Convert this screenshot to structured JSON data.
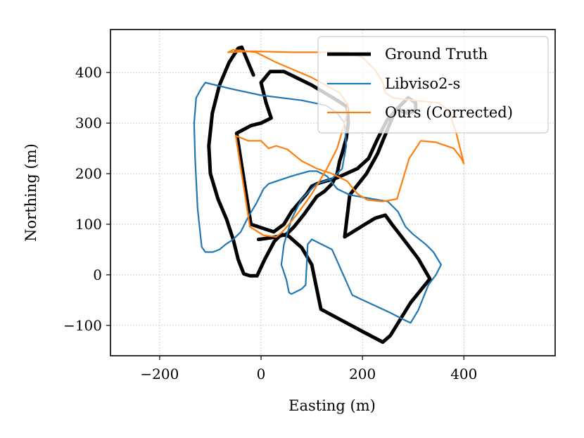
{
  "chart_data": {
    "type": "line",
    "xlabel": "Easting (m)",
    "ylabel": "Northing (m)",
    "xlim": [
      -297,
      580
    ],
    "ylim": [
      -160,
      485
    ],
    "xticks": [
      -200,
      0,
      200,
      400
    ],
    "xtick_labels": [
      "−200",
      "0",
      "200",
      "400"
    ],
    "yticks": [
      -100,
      0,
      100,
      200,
      300,
      400
    ],
    "ytick_labels": [
      "−100",
      "0",
      "100",
      "200",
      "300",
      "400"
    ],
    "grid": true,
    "legend_position": "top-right",
    "series": [
      {
        "name": "Ground Truth",
        "color": "#000000",
        "points": [
          [
            -15,
            395
          ],
          [
            -38,
            450
          ],
          [
            -45,
            448
          ],
          [
            -63,
            420
          ],
          [
            -82,
            375
          ],
          [
            -96,
            320
          ],
          [
            -103,
            255
          ],
          [
            -100,
            200
          ],
          [
            -85,
            150
          ],
          [
            -68,
            110
          ],
          [
            -55,
            70
          ],
          [
            -45,
            30
          ],
          [
            -34,
            2
          ],
          [
            -22,
            -2
          ],
          [
            -8,
            -2
          ],
          [
            7,
            30
          ],
          [
            26,
            66
          ],
          [
            40,
            80
          ],
          [
            55,
            76
          ],
          [
            80,
            54
          ],
          [
            100,
            20
          ],
          [
            118,
            -68
          ],
          [
            200,
            -112
          ],
          [
            240,
            -133
          ],
          [
            255,
            -120
          ],
          [
            295,
            -55
          ],
          [
            325,
            -18
          ],
          [
            333,
            -8
          ],
          [
            310,
            32
          ],
          [
            285,
            65
          ],
          [
            258,
            100
          ],
          [
            245,
            118
          ],
          [
            225,
            112
          ],
          [
            205,
            100
          ],
          [
            165,
            75
          ],
          [
            175,
            158
          ],
          [
            208,
            200
          ],
          [
            230,
            240
          ],
          [
            240,
            265
          ],
          [
            262,
            318
          ],
          [
            270,
            330
          ],
          [
            280,
            322
          ],
          [
            292,
            320
          ],
          [
            305,
            325
          ],
          [
            305,
            340
          ],
          [
            290,
            350
          ],
          [
            270,
            330
          ],
          [
            248,
            305
          ],
          [
            228,
            265
          ],
          [
            212,
            230
          ],
          [
            190,
            210
          ],
          [
            150,
            192
          ],
          [
            110,
            180
          ],
          [
            100,
            175
          ],
          [
            90,
            160
          ],
          [
            60,
            125
          ],
          [
            45,
            100
          ],
          [
            25,
            85
          ],
          [
            -20,
            100
          ],
          [
            -48,
            280
          ],
          [
            -20,
            295
          ],
          [
            0,
            300
          ],
          [
            10,
            305
          ],
          [
            20,
            310
          ],
          [
            10,
            340
          ],
          [
            0,
            380
          ],
          [
            18,
            402
          ],
          [
            45,
            402
          ],
          [
            100,
            375
          ],
          [
            150,
            345
          ],
          [
            170,
            332
          ],
          [
            172,
            300
          ],
          [
            168,
            270
          ],
          [
            160,
            240
          ],
          [
            155,
            225
          ],
          [
            150,
            200
          ],
          [
            140,
            180
          ],
          [
            125,
            165
          ],
          [
            110,
            155
          ],
          [
            85,
            120
          ],
          [
            65,
            95
          ],
          [
            50,
            80
          ],
          [
            30,
            75
          ],
          [
            10,
            72
          ],
          [
            -5,
            70
          ]
        ]
      },
      {
        "name": "Libviso2-s",
        "color": "#1f77b4",
        "points": [
          [
            -117,
            370
          ],
          [
            -110,
            380
          ],
          [
            -60,
            368
          ],
          [
            0,
            355
          ],
          [
            80,
            345
          ],
          [
            128,
            335
          ],
          [
            150,
            320
          ],
          [
            165,
            300
          ],
          [
            168,
            255
          ],
          [
            160,
            210
          ],
          [
            140,
            190
          ],
          [
            110,
            180
          ],
          [
            80,
            150
          ],
          [
            60,
            110
          ],
          [
            45,
            60
          ],
          [
            40,
            20
          ],
          [
            50,
            -10
          ],
          [
            55,
            -35
          ],
          [
            60,
            -38
          ],
          [
            80,
            -28
          ],
          [
            88,
            -20
          ],
          [
            90,
            20
          ],
          [
            92,
            60
          ],
          [
            100,
            70
          ],
          [
            140,
            50
          ],
          [
            180,
            -40
          ],
          [
            205,
            -52
          ],
          [
            255,
            -75
          ],
          [
            280,
            -88
          ],
          [
            295,
            -95
          ],
          [
            310,
            -70
          ],
          [
            330,
            -20
          ],
          [
            345,
            0
          ],
          [
            355,
            20
          ],
          [
            340,
            45
          ],
          [
            325,
            60
          ],
          [
            300,
            80
          ],
          [
            285,
            95
          ],
          [
            270,
            125
          ],
          [
            250,
            145
          ],
          [
            220,
            150
          ],
          [
            175,
            158
          ],
          [
            150,
            170
          ],
          [
            130,
            195
          ],
          [
            110,
            205
          ],
          [
            95,
            205
          ],
          [
            60,
            195
          ],
          [
            30,
            185
          ],
          [
            15,
            180
          ],
          [
            5,
            170
          ],
          [
            -10,
            140
          ],
          [
            -25,
            115
          ],
          [
            -40,
            85
          ],
          [
            -55,
            70
          ],
          [
            -70,
            60
          ],
          [
            -82,
            50
          ],
          [
            -95,
            45
          ],
          [
            -110,
            45
          ],
          [
            -117,
            55
          ],
          [
            -125,
            130
          ],
          [
            -130,
            230
          ],
          [
            -132,
            300
          ],
          [
            -128,
            350
          ],
          [
            -117,
            370
          ]
        ]
      },
      {
        "name": "Ours (Corrected)",
        "color": "#ff7f0e",
        "points": [
          [
            -65,
            440
          ],
          [
            -55,
            445
          ],
          [
            -10,
            440
          ],
          [
            30,
            420
          ],
          [
            100,
            390
          ],
          [
            155,
            360
          ],
          [
            172,
            335
          ],
          [
            165,
            300
          ],
          [
            150,
            250
          ],
          [
            130,
            210
          ],
          [
            112,
            180
          ],
          [
            100,
            160
          ],
          [
            75,
            125
          ],
          [
            55,
            100
          ],
          [
            42,
            85
          ],
          [
            30,
            75
          ],
          [
            5,
            78
          ],
          [
            -22,
            95
          ],
          [
            -50,
            275
          ],
          [
            -25,
            265
          ],
          [
            0,
            265
          ],
          [
            15,
            250
          ],
          [
            30,
            255
          ],
          [
            52,
            248
          ],
          [
            80,
            225
          ],
          [
            110,
            210
          ],
          [
            140,
            200
          ],
          [
            160,
            190
          ],
          [
            170,
            185
          ],
          [
            190,
            160
          ],
          [
            210,
            148
          ],
          [
            240,
            145
          ],
          [
            268,
            150
          ],
          [
            292,
            230
          ],
          [
            315,
            265
          ],
          [
            345,
            262
          ],
          [
            380,
            250
          ],
          [
            395,
            230
          ],
          [
            400,
            220
          ],
          [
            385,
            280
          ],
          [
            370,
            325
          ],
          [
            350,
            340
          ],
          [
            300,
            345
          ],
          [
            260,
            350
          ],
          [
            245,
            360
          ],
          [
            240,
            380
          ],
          [
            225,
            405
          ],
          [
            200,
            430
          ],
          [
            170,
            440
          ],
          [
            120,
            440
          ],
          [
            60,
            440
          ],
          [
            -20,
            442
          ],
          [
            -65,
            440
          ]
        ]
      }
    ]
  }
}
